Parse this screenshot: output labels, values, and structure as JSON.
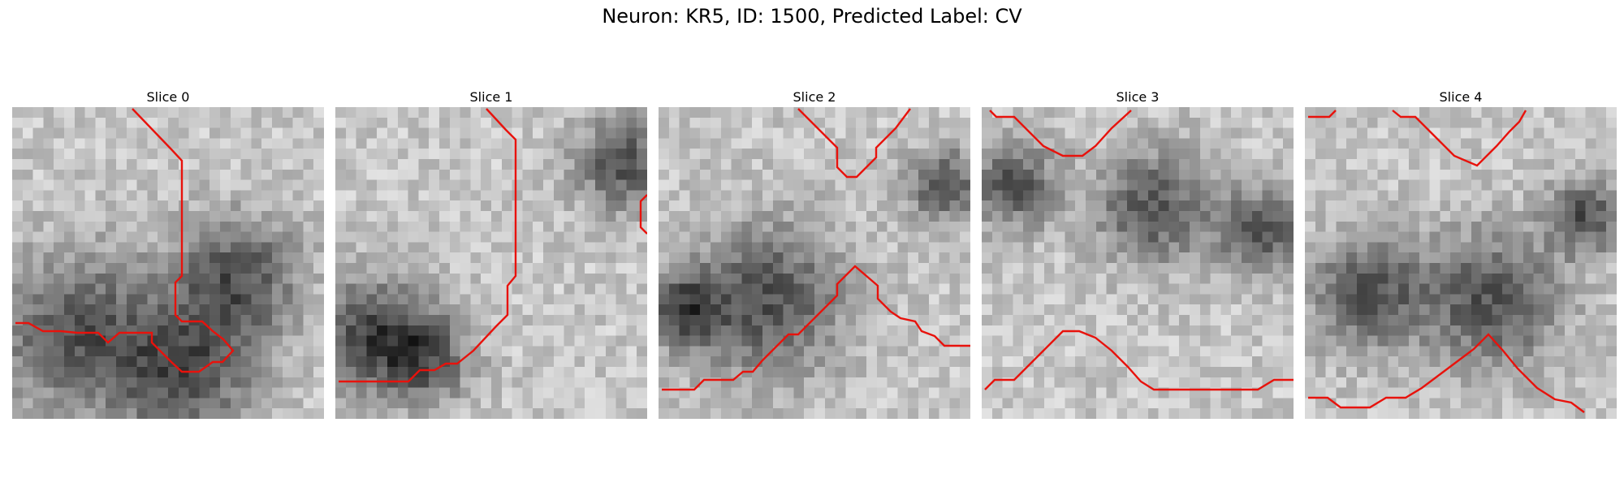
{
  "title": "Neuron: KR5, ID: 1500, Predicted Label: CV",
  "panels": [
    {
      "label": "Slice 0",
      "contour_color": "#e8120c",
      "seed": 11,
      "dark_blobs": [
        [
          0.72,
          0.55,
          0.2
        ],
        [
          0.55,
          0.85,
          0.22
        ],
        [
          0.2,
          0.72,
          0.25
        ]
      ]
    },
    {
      "label": "Slice 1",
      "contour_color": "#e8120c",
      "seed": 23,
      "dark_blobs": [
        [
          0.92,
          0.18,
          0.15
        ],
        [
          0.1,
          0.72,
          0.18
        ],
        [
          0.28,
          0.8,
          0.15
        ]
      ]
    },
    {
      "label": "Slice 2",
      "contour_color": "#e8120c",
      "seed": 37,
      "dark_blobs": [
        [
          0.35,
          0.62,
          0.25
        ],
        [
          0.08,
          0.65,
          0.12
        ],
        [
          0.92,
          0.25,
          0.12
        ]
      ]
    },
    {
      "label": "Slice 3",
      "contour_color": "#e8120c",
      "seed": 41,
      "dark_blobs": [
        [
          0.55,
          0.32,
          0.18
        ],
        [
          0.1,
          0.25,
          0.14
        ],
        [
          0.9,
          0.4,
          0.14
        ]
      ]
    },
    {
      "label": "Slice 4",
      "contour_color": "#e8120c",
      "seed": 53,
      "dark_blobs": [
        [
          0.2,
          0.6,
          0.18
        ],
        [
          0.6,
          0.62,
          0.22
        ],
        [
          0.9,
          0.35,
          0.12
        ]
      ]
    }
  ]
}
